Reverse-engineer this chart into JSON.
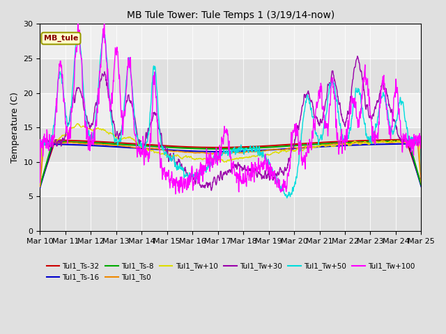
{
  "title": "MB Tule Tower: Tule Temps 1 (3/19/14-now)",
  "ylabel": "Temperature (C)",
  "ylim": [
    0,
    30
  ],
  "yticks": [
    0,
    5,
    10,
    15,
    20,
    25,
    30
  ],
  "x_tick_labels": [
    "Mar 10",
    "Mar 11",
    "Mar 12",
    "Mar 13",
    "Mar 14",
    "Mar 15",
    "Mar 16",
    "Mar 17",
    "Mar 18",
    "Mar 19",
    "Mar 20",
    "Mar 21",
    "Mar 22",
    "Mar 23",
    "Mar 24",
    "Mar 25"
  ],
  "legend_label": "MB_tule",
  "background_color": "#e0e0e0",
  "series_colors": {
    "Tul1_Ts-32": "#cc0000",
    "Tul1_Ts-16": "#0000cc",
    "Tul1_Ts-8": "#00aa00",
    "Tul1_Ts0": "#ee8800",
    "Tul1_Tw+10": "#dddd00",
    "Tul1_Tw+30": "#9900aa",
    "Tul1_Tw+50": "#00dddd",
    "Tul1_Tw+100": "#ff00ff"
  }
}
